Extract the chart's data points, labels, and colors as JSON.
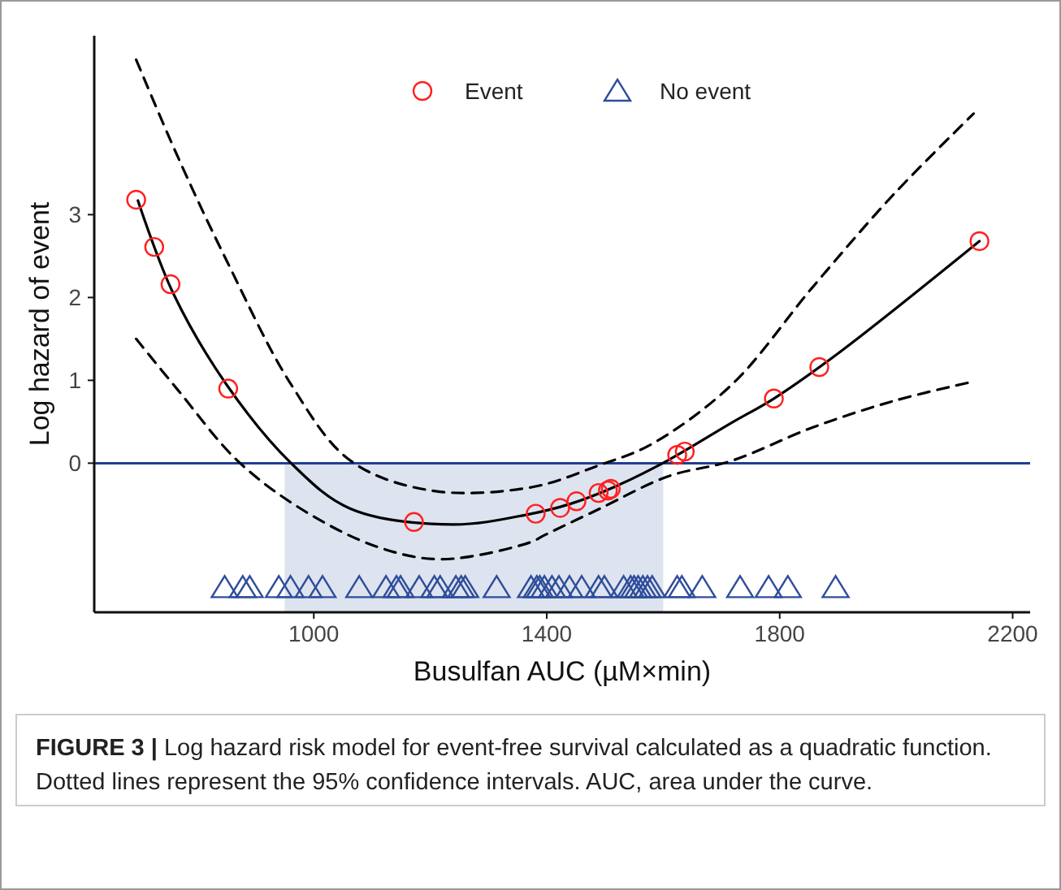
{
  "chart_data": {
    "type": "scatter",
    "xlabel": "Busulfan AUC (µM×min)",
    "ylabel": "Log hazard of event",
    "xlim": [
      623,
      2230
    ],
    "ylim": [
      -1.8,
      5.16
    ],
    "xticks": [
      1000,
      1400,
      1800,
      2200
    ],
    "yticks": [
      0,
      1,
      2,
      3
    ],
    "grid": false,
    "legend": "top",
    "tick_labels": true,
    "ref_lines": [
      {
        "axis": "y",
        "value": 0,
        "color": "#1f3f8f"
      }
    ],
    "bands": [
      {
        "axis": "x",
        "from": 950,
        "to": 1600,
        "color": "#dde3ef"
      }
    ],
    "series": [
      {
        "type": "line",
        "color": "#000000",
        "line_style": "solid",
        "marker": "none",
        "x": [
          698,
          758,
          850,
          961,
          1063,
          1238,
          1367,
          1441,
          1515,
          1607,
          1718,
          1790,
          1903,
          2143
        ],
        "values": [
          3.17,
          2.06,
          0.95,
          0.0,
          -0.55,
          -0.74,
          -0.62,
          -0.49,
          -0.29,
          0.03,
          0.49,
          0.78,
          1.34,
          2.68
        ]
      },
      {
        "type": "line",
        "color": "#000000",
        "line_style": "dashed",
        "marker": "none",
        "x": [
          695,
          767,
          850,
          961,
          1063,
          1201,
          1374,
          1488,
          1580,
          1718,
          1856,
          1995,
          2133
        ],
        "values": [
          4.87,
          3.69,
          2.45,
          0.95,
          0.03,
          -0.33,
          -0.29,
          -0.03,
          0.23,
          0.95,
          2.12,
          3.24,
          4.22
        ]
      },
      {
        "type": "line",
        "color": "#000000",
        "line_style": "dashed",
        "marker": "none",
        "x": [
          695,
          767,
          869,
          980,
          1109,
          1220,
          1374,
          1393,
          1488,
          1608,
          1718,
          1856,
          1995,
          2129
        ],
        "values": [
          1.5,
          0.88,
          0.03,
          -0.56,
          -1.01,
          -1.16,
          -0.95,
          -0.88,
          -0.56,
          -0.16,
          0.03,
          0.43,
          0.75,
          0.98
        ]
      },
      {
        "name": "Event",
        "marker": "circle",
        "color": "#ff2020",
        "x": [
          695,
          726,
          754,
          853,
          1172,
          1381,
          1423,
          1451,
          1489,
          1505,
          1510,
          1624,
          1637,
          1790,
          1868,
          2143
        ],
        "values": [
          3.18,
          2.61,
          2.16,
          0.9,
          -0.71,
          -0.61,
          -0.54,
          -0.46,
          -0.36,
          -0.33,
          -0.31,
          0.1,
          0.14,
          0.78,
          1.16,
          2.68
        ]
      },
      {
        "name": "No event",
        "marker": "triangle",
        "color": "#2e4d9a",
        "x": [
          847,
          878,
          890,
          940,
          960,
          991,
          1015,
          1078,
          1124,
          1142,
          1149,
          1181,
          1207,
          1217,
          1244,
          1253,
          1260,
          1314,
          1373,
          1383,
          1388,
          1396,
          1409,
          1421,
          1439,
          1460,
          1489,
          1499,
          1532,
          1544,
          1550,
          1557,
          1565,
          1573,
          1581,
          1624,
          1632,
          1667,
          1732,
          1781,
          1814,
          1896
        ],
        "values": [
          -1.5,
          -1.5,
          -1.5,
          -1.5,
          -1.5,
          -1.5,
          -1.5,
          -1.5,
          -1.5,
          -1.5,
          -1.5,
          -1.5,
          -1.5,
          -1.5,
          -1.5,
          -1.5,
          -1.5,
          -1.5,
          -1.5,
          -1.5,
          -1.5,
          -1.5,
          -1.5,
          -1.5,
          -1.5,
          -1.5,
          -1.5,
          -1.5,
          -1.5,
          -1.5,
          -1.5,
          -1.5,
          -1.5,
          -1.5,
          -1.5,
          -1.5,
          -1.5,
          -1.5,
          -1.5,
          -1.5,
          -1.5,
          -1.5
        ]
      }
    ],
    "annotations": [
      "FIGURE 3 | Log hazard risk model for event-free survival calculated as a quadratic function. Dotted lines represent the 95% confidence intervals. AUC, area under the curve."
    ]
  }
}
